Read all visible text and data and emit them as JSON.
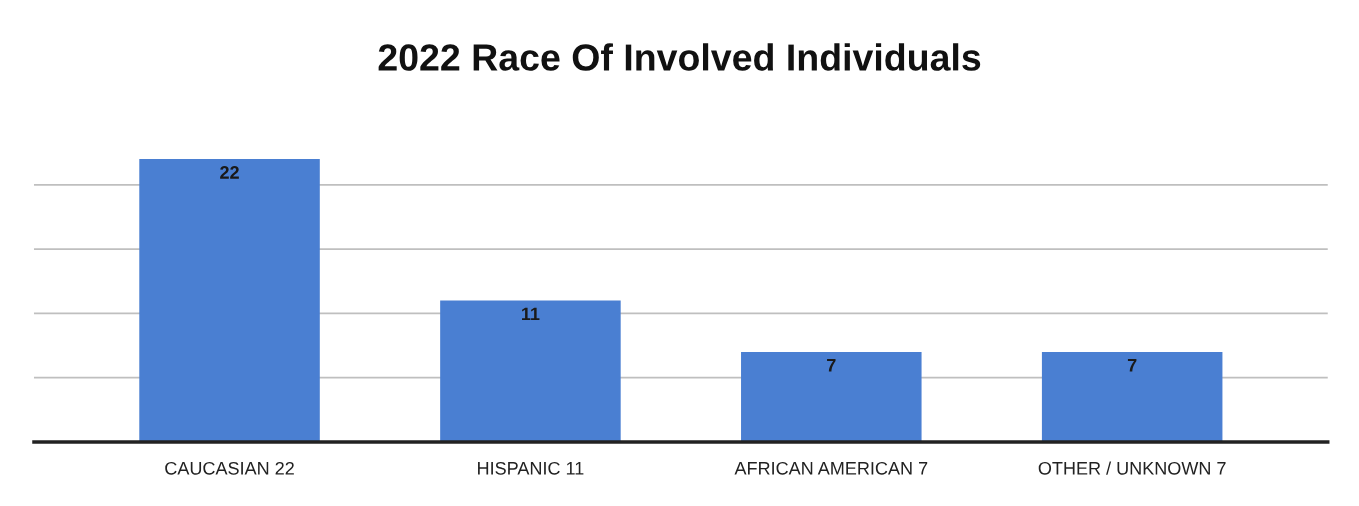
{
  "chart_data": {
    "type": "bar",
    "title": "2022 Race Of Involved Individuals",
    "categories": [
      "CAUCASIAN 22",
      "HISPANIC 11",
      "AFRICAN AMERICAN 7",
      "OTHER / UNKNOWN 7"
    ],
    "values": [
      22,
      11,
      7,
      7
    ],
    "color": "#4a7fd2",
    "yticks": [
      {
        "value": 5,
        "label": null
      },
      {
        "value": 10,
        "label": null
      },
      {
        "value": 15,
        "label": null
      },
      {
        "value": 20,
        "label": null
      }
    ],
    "grid": "y",
    "tick_labels": "x",
    "data_labels": true
  }
}
